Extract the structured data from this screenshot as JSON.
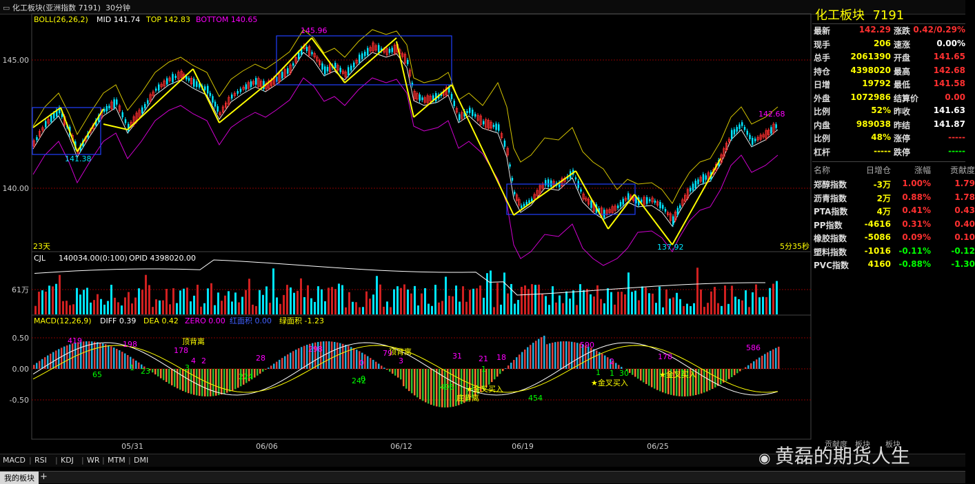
{
  "titlebar": {
    "title": "化工板块(亚洲指数 7191)",
    "period": "30分钟"
  },
  "main_panel": {
    "indicator": "BOLL(26,26,2)",
    "mid": "MID 141.74",
    "top": "TOP 142.83",
    "bottom": "BOTTOM 140.65",
    "y_ticks": [
      "145.00",
      "140.00"
    ],
    "days_label": "23天",
    "countdown": "5分35秒",
    "annotations": [
      "145.96",
      "141.38",
      "137.92",
      "142.68"
    ]
  },
  "volume_panel": {
    "indicator": "CJL",
    "volume": "140034.00(0:100)",
    "opid": "OPID 4398020.00",
    "y_tick": "61万"
  },
  "macd_panel": {
    "indicator": "MACD(12,26,9)",
    "diff": "DIFF 0.39",
    "dea": "DEA 0.42",
    "zero": "ZERO 0.00",
    "red_area": "红面积 0.00",
    "green_area": "绿面积 -1.23",
    "y_ticks": [
      "0.50",
      "0.00",
      "-0.50"
    ],
    "labels_magenta": [
      "419",
      "198",
      "178",
      "4",
      "2",
      "28",
      "298",
      "79",
      "31",
      "21",
      "18",
      "590",
      "2",
      "178",
      "586",
      "0",
      "3"
    ],
    "labels_green": [
      "1",
      "3",
      "65",
      "23",
      "224",
      "242",
      "0",
      "495",
      "1",
      "454",
      "1",
      "1",
      "30",
      "2"
    ],
    "labels_yellow": [
      "顶背离",
      "顶背离",
      "金叉买入",
      "底背离",
      "金叉买入",
      "金叉买入"
    ]
  },
  "x_axis": [
    "05/31",
    "06/06",
    "06/12",
    "06/19",
    "06/25"
  ],
  "quote": {
    "name": "化工板块",
    "code": "7191",
    "rows": [
      {
        "l1": "最新",
        "v1": "142.29",
        "l2": "涨跌",
        "v2": "0.42/0.29%"
      },
      {
        "l1": "现手",
        "v1": "206",
        "l2": "速涨",
        "v2": "0.00%"
      },
      {
        "l1": "总手",
        "v1": "2061390",
        "l2": "开盘",
        "v2": "141.65"
      },
      {
        "l1": "持仓",
        "v1": "4398020",
        "l2": "最高",
        "v2": "142.68"
      },
      {
        "l1": "日增",
        "v1": "19792",
        "l2": "最低",
        "v2": "141.58"
      },
      {
        "l1": "外盘",
        "v1": "1072986",
        "l2": "结算价",
        "v2": "0.00"
      },
      {
        "l1": "比例",
        "v1": "52%",
        "l2": "昨收",
        "v2": "141.63"
      },
      {
        "l1": "内盘",
        "v1": "989038",
        "l2": "昨结",
        "v2": "141.87"
      },
      {
        "l1": "比例",
        "v1": "48%",
        "l2": "涨停",
        "v2": "-----"
      },
      {
        "l1": "杠杆",
        "v1": "-----",
        "l2": "跌停",
        "v2": "-----"
      }
    ]
  },
  "sector": {
    "headers": [
      "名称",
      "日增仓",
      "涨幅",
      "贡献度"
    ],
    "rows": [
      {
        "name": "郑醇指数",
        "inc": "-3万",
        "chg": "1.00%",
        "contrib": "1.79"
      },
      {
        "name": "沥青指数",
        "inc": "2万",
        "chg": "0.88%",
        "contrib": "1.78"
      },
      {
        "name": "PTA指数",
        "inc": "4万",
        "chg": "0.41%",
        "contrib": "0.43"
      },
      {
        "name": "PP指数",
        "inc": "-4616",
        "chg": "0.31%",
        "contrib": "0.40"
      },
      {
        "name": "橡胶指数",
        "inc": "-5086",
        "chg": "0.09%",
        "contrib": "0.10"
      },
      {
        "name": "塑料指数",
        "inc": "-1016",
        "chg": "-0.11%",
        "contrib": "-0.12"
      },
      {
        "name": "PVC指数",
        "inc": "4160",
        "chg": "-0.88%",
        "contrib": "-1.30"
      }
    ]
  },
  "right_tabs": [
    "贡献度",
    "板块",
    "板块"
  ],
  "bottom_tabs": [
    "MACD",
    "RSI",
    "KDJ",
    "WR",
    "MTM",
    "DMI"
  ],
  "sheet_tab": "我的板块",
  "watermark": "黄磊的期货人生",
  "colors": {
    "up": "#ff3030",
    "down": "#00e5ff",
    "yellow": "#ffff00",
    "magenta": "#ff00ff",
    "green": "#00ff00"
  }
}
